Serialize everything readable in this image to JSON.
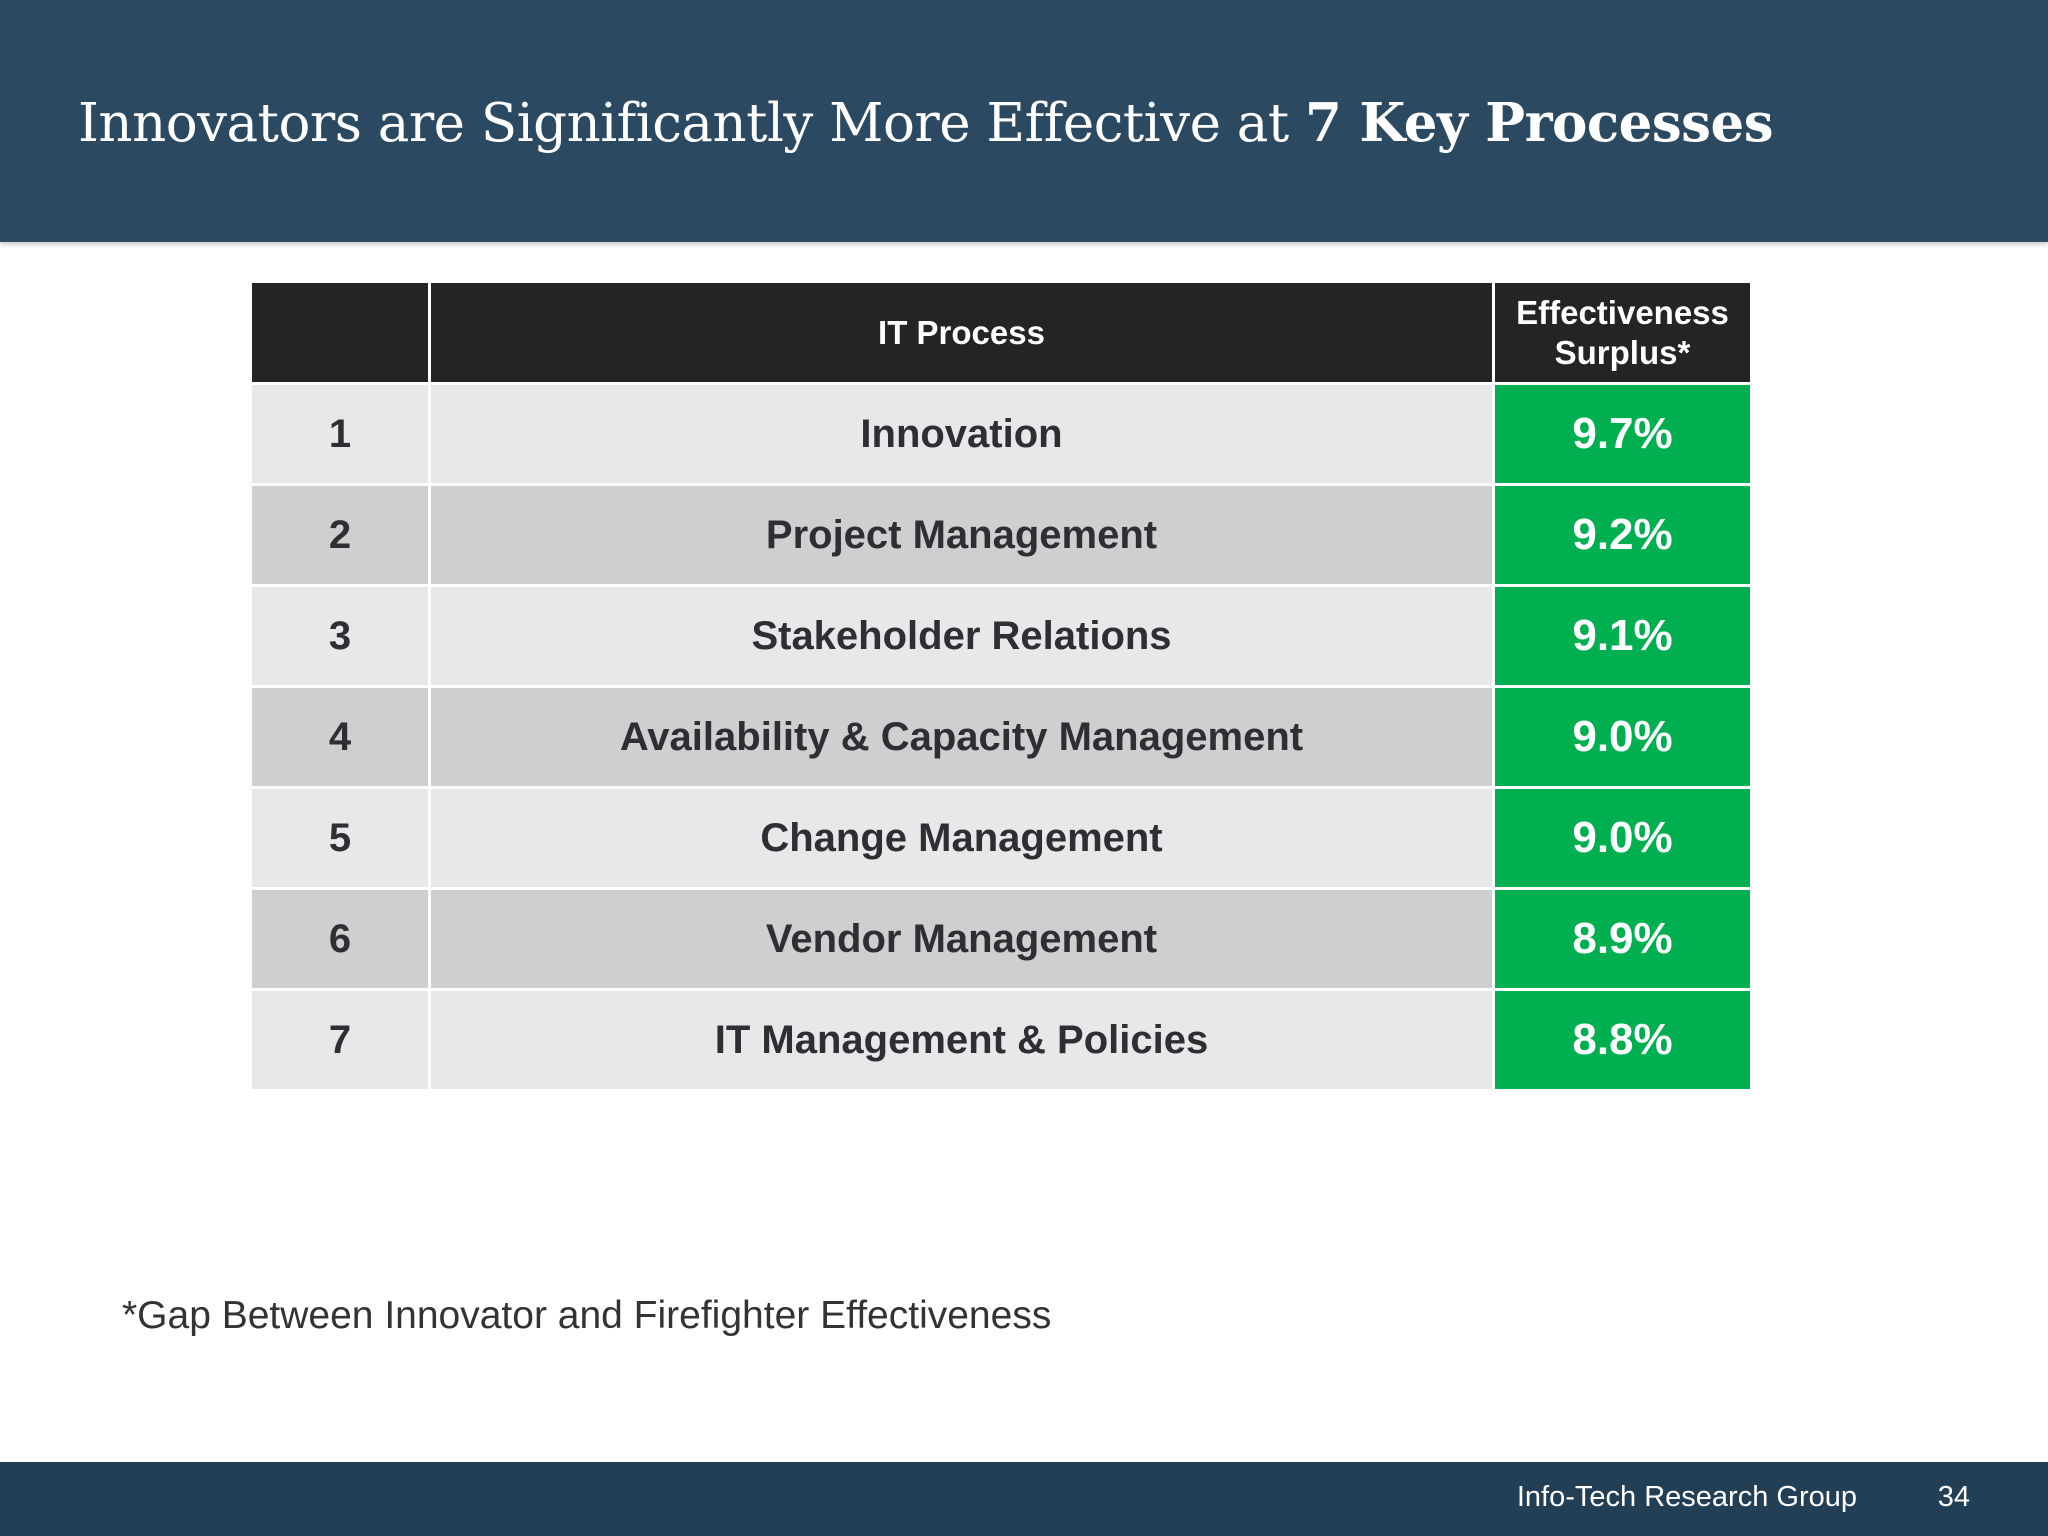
{
  "header": {
    "title_regular": "Innovators are Significantly More Effective at ",
    "title_bold": "7 Key Processes",
    "background_color": "#2b4a62"
  },
  "table": {
    "columns": [
      "",
      "IT Process",
      "Effectiveness Surplus*"
    ],
    "header_background": "#242326",
    "surplus_color": "#00b050",
    "rows": [
      {
        "rank": "1",
        "process": "Innovation",
        "surplus": "9.7%"
      },
      {
        "rank": "2",
        "process": "Project Management",
        "surplus": "9.2%"
      },
      {
        "rank": "3",
        "process": "Stakeholder Relations",
        "surplus": "9.1%"
      },
      {
        "rank": "4",
        "process": "Availability & Capacity Management",
        "surplus": "9.0%"
      },
      {
        "rank": "5",
        "process": "Change Management",
        "surplus": "9.0%"
      },
      {
        "rank": "6",
        "process": "Vendor Management",
        "surplus": "8.9%"
      },
      {
        "rank": "7",
        "process": "IT Management & Policies",
        "surplus": "8.8%"
      }
    ]
  },
  "footnote": "*Gap Between Innovator and Firefighter Effectiveness",
  "footer": {
    "organization": "Info-Tech Research Group",
    "page_number": "34"
  }
}
